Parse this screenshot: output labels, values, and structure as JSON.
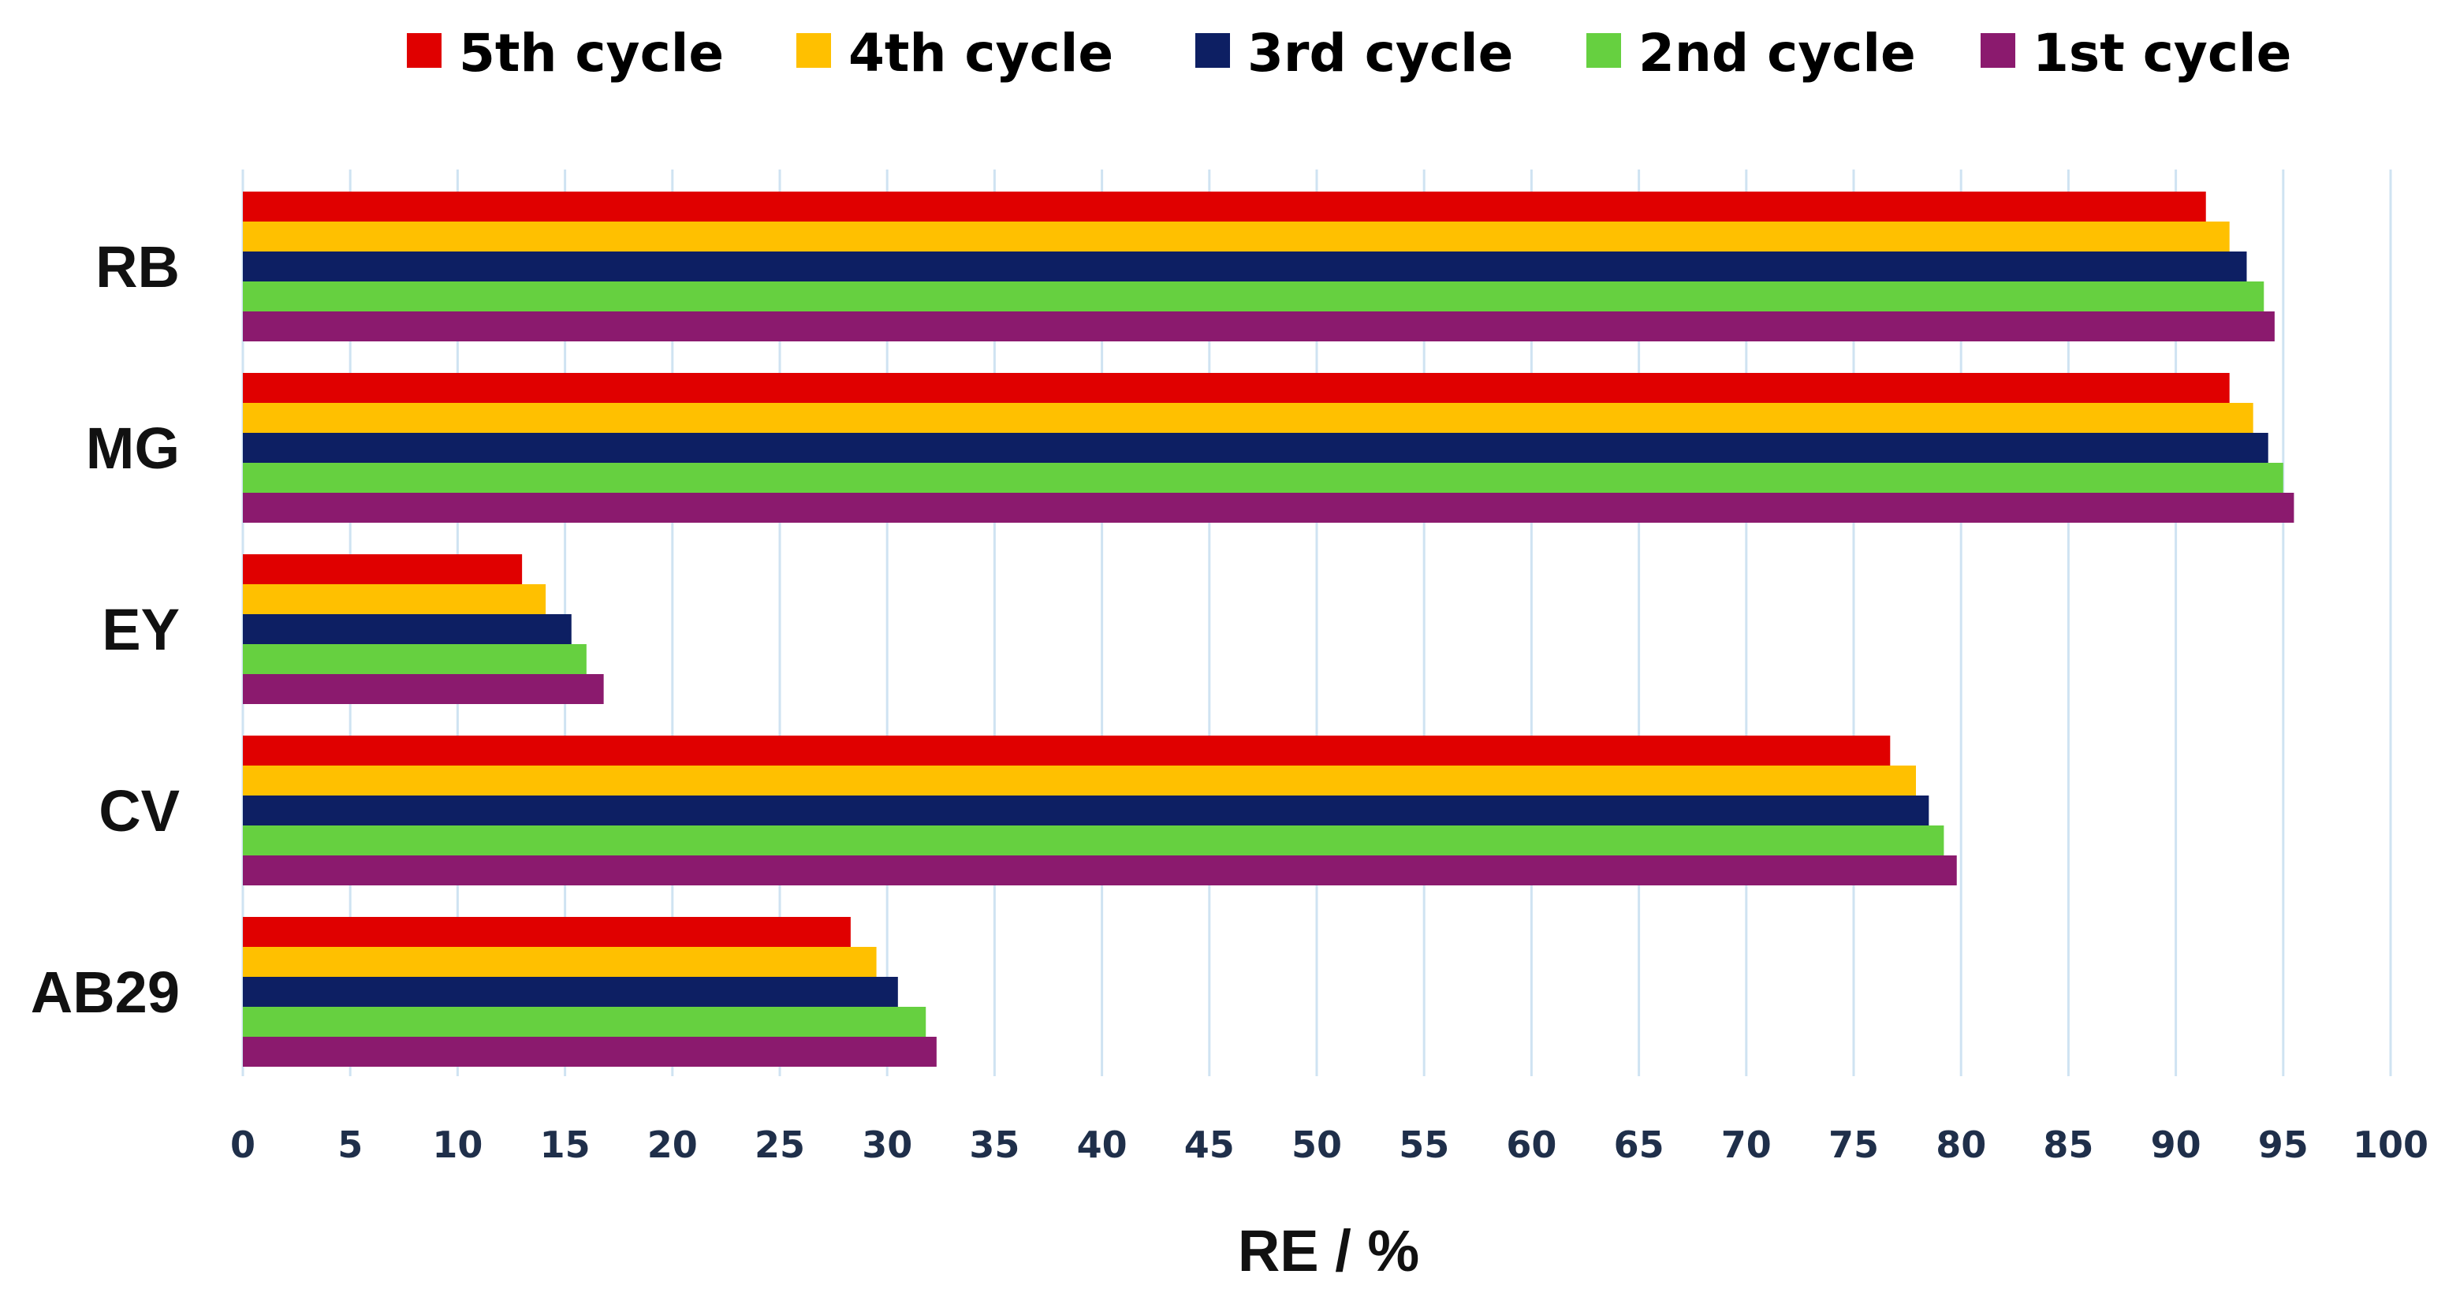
{
  "chart_data": {
    "type": "bar",
    "orientation": "horizontal",
    "categories": [
      "RB",
      "MG",
      "EY",
      "CV",
      "AB29"
    ],
    "series": [
      {
        "name": "5th cycle",
        "color": "#e00000",
        "values": [
          91.4,
          92.5,
          13.0,
          76.7,
          28.3
        ]
      },
      {
        "name": "4th cycle",
        "color": "#ffc000",
        "values": [
          92.5,
          93.6,
          14.1,
          77.9,
          29.5
        ]
      },
      {
        "name": "3rd cycle",
        "color": "#0d1f63",
        "values": [
          93.3,
          94.3,
          15.3,
          78.5,
          30.5
        ]
      },
      {
        "name": "2nd cycle",
        "color": "#66d040",
        "values": [
          94.1,
          95.0,
          16.0,
          79.2,
          31.8
        ]
      },
      {
        "name": "1st cycle",
        "color": "#8b1a6e",
        "values": [
          94.6,
          95.5,
          16.8,
          79.8,
          32.3
        ]
      }
    ],
    "xlabel": "RE / %",
    "ylabel": "",
    "xlim": [
      0,
      100
    ],
    "xticks": [
      "0",
      "5",
      "10",
      "15",
      "20",
      "25",
      "30",
      "35",
      "40",
      "45",
      "50",
      "55",
      "60",
      "65",
      "70",
      "75",
      "80",
      "85",
      "90",
      "95",
      "100"
    ],
    "grid": true,
    "legend_position": "top"
  }
}
